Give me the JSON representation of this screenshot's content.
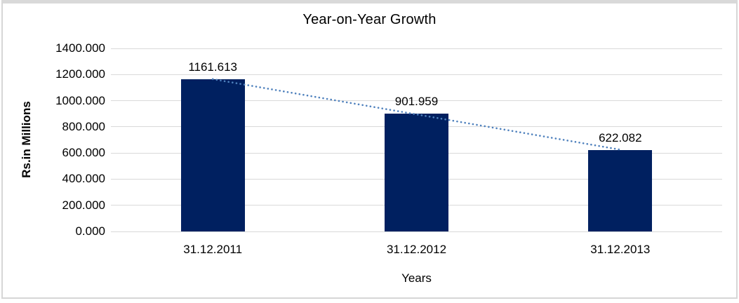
{
  "chart_data": {
    "type": "bar",
    "title": "Year-on-Year Growth",
    "xlabel": "Years",
    "ylabel": "Rs.in Millions",
    "categories": [
      "31.12.2011",
      "31.12.2012",
      "31.12.2013"
    ],
    "values": [
      1161.613,
      901.959,
      622.082
    ],
    "data_labels": [
      "1161.613",
      "901.959",
      "622.082"
    ],
    "ylim": [
      0,
      1400
    ],
    "ytick_step": 200,
    "ytick_labels": [
      "0.000",
      "200.000",
      "400.000",
      "600.000",
      "800.000",
      "1000.000",
      "1200.000",
      "1400.000"
    ],
    "grid": true,
    "legend": "none",
    "trendline": "linear-dotted",
    "colors": {
      "bar": "#002060",
      "trendline": "#4f81bd",
      "gridline": "#d9d9d9",
      "text": "#000000",
      "frame_border": "#d9d9d9",
      "background": "#ffffff"
    }
  }
}
